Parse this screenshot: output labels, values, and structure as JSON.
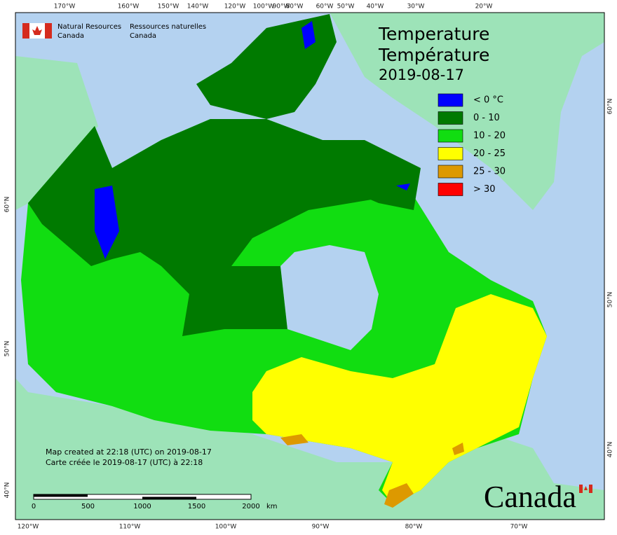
{
  "header": {
    "agency_en_1": "Natural Resources",
    "agency_en_2": "Canada",
    "agency_fr_1": "Ressources naturelles",
    "agency_fr_2": "Canada"
  },
  "title": {
    "en": "Temperature",
    "fr": "Température",
    "date": "2019-08-17"
  },
  "legend": [
    {
      "label": "< 0 °C",
      "color": "#0000ff"
    },
    {
      "label": "0 - 10",
      "color": "#007a00"
    },
    {
      "label": "10 - 20",
      "color": "#11dd11"
    },
    {
      "label": "20 - 25",
      "color": "#ffff00"
    },
    {
      "label": "25 - 30",
      "color": "#dd9900"
    },
    {
      "label": "> 30",
      "color": "#ff0000"
    }
  ],
  "graticule": {
    "top": [
      "170°W",
      "160°W",
      "150°W",
      "140°W",
      "120°W",
      "100°W",
      "90°W",
      "80°W",
      "60°W",
      "50°W",
      "40°W",
      "30°W",
      "20°W"
    ],
    "bottom": [
      "120°W",
      "110°W",
      "100°W",
      "90°W",
      "80°W",
      "70°W"
    ],
    "left": [
      "60°N",
      "50°N",
      "40°N"
    ],
    "right": [
      "60°N",
      "50°N",
      "40°N"
    ]
  },
  "footer": {
    "line1": "Map created at 22:18 (UTC) on 2019-08-17",
    "line2": "Carte créée le 2019-08-17 (UTC) à 22:18"
  },
  "scale": {
    "ticks": [
      "0",
      "500",
      "1000",
      "1500",
      "2000"
    ],
    "unit": "km"
  },
  "wordmark": "Canada"
}
